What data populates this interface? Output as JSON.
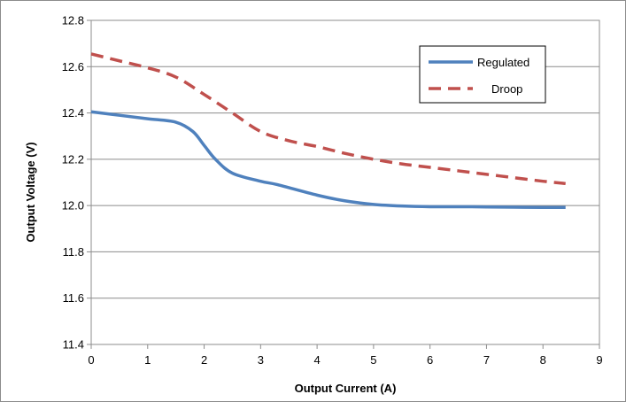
{
  "chart_data": {
    "type": "line",
    "title": "",
    "xlabel": "Output Current (A)",
    "ylabel": "Output Voltage (V)",
    "xlim": [
      0,
      9
    ],
    "ylim": [
      11.4,
      12.8
    ],
    "x_ticks": [
      "0",
      "1",
      "2",
      "3",
      "4",
      "5",
      "6",
      "7",
      "8",
      "9"
    ],
    "y_ticks": [
      "11.4",
      "11.6",
      "11.8",
      "12.0",
      "12.2",
      "12.4",
      "12.6",
      "12.8"
    ],
    "grid": "horizontal",
    "legend_position": "top-right",
    "series": [
      {
        "name": "Regulated",
        "color": "#4F81BD",
        "style": "solid",
        "x": [
          0,
          0.5,
          1,
          1.5,
          1.8,
          2,
          2.2,
          2.5,
          3,
          3.3,
          4,
          4.5,
          5,
          5.5,
          6,
          6.5,
          7,
          7.5,
          8,
          8.4
        ],
        "y": [
          12.405,
          12.39,
          12.375,
          12.36,
          12.32,
          12.26,
          12.2,
          12.14,
          12.105,
          12.09,
          12.045,
          12.02,
          12.005,
          11.998,
          11.995,
          11.995,
          11.994,
          11.993,
          11.992,
          11.992
        ]
      },
      {
        "name": "Droop",
        "color": "#C0504D",
        "style": "dashed",
        "x": [
          0,
          0.5,
          1,
          1.5,
          2,
          2.5,
          3,
          3.5,
          4,
          4.5,
          5,
          5.5,
          6,
          6.5,
          7,
          7.5,
          8,
          8.4
        ],
        "y": [
          12.655,
          12.625,
          12.595,
          12.555,
          12.48,
          12.4,
          12.32,
          12.28,
          12.255,
          12.225,
          12.2,
          12.18,
          12.165,
          12.15,
          12.135,
          12.12,
          12.105,
          12.095
        ]
      }
    ]
  }
}
